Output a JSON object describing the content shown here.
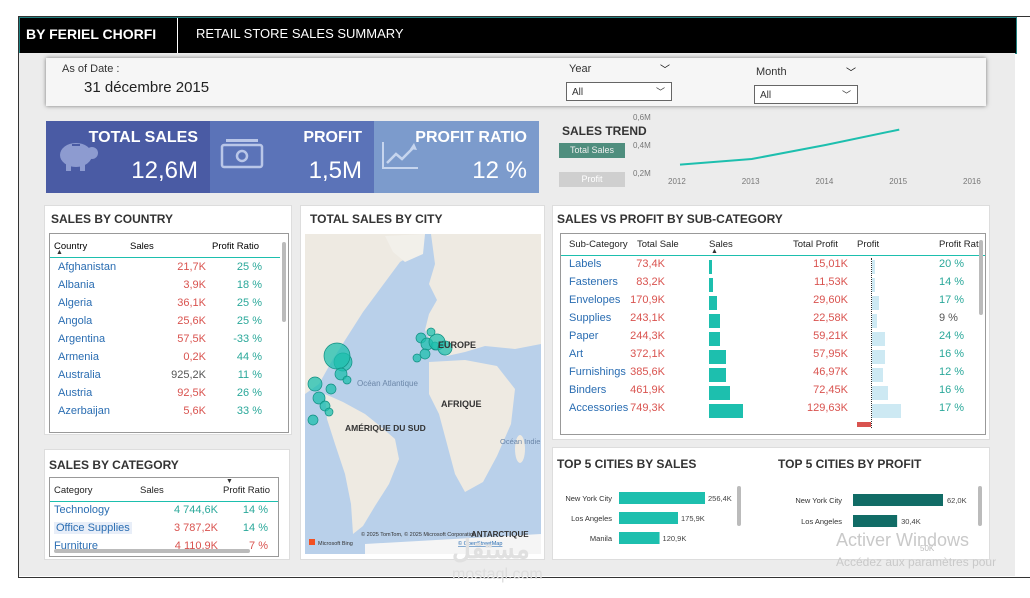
{
  "header": {
    "author": "BY FERIEL CHORFI",
    "subtitle": "RETAIL STORE SALES SUMMARY"
  },
  "filters": {
    "as_of_label": "As of Date :",
    "as_of_value": "31 décembre 2015",
    "year_label": "Year",
    "year_value": "All",
    "month_label": "Month",
    "month_value": "All"
  },
  "kpis": {
    "total_sales_label": "TOTAL SALES",
    "total_sales_value": "12,6M",
    "profit_label": "PROFIT",
    "profit_value": "1,5M",
    "profit_ratio_label": "PROFIT RATIO",
    "profit_ratio_value": "12 %"
  },
  "trend": {
    "title": "SALES TREND",
    "btn_sales": "Total Sales",
    "btn_profit": "Profit",
    "y_ticks": [
      "0,6M",
      "0,4M",
      "0,2M"
    ],
    "x_ticks": [
      "2012",
      "2013",
      "2014",
      "2015",
      "2016"
    ],
    "chart_data": {
      "type": "line",
      "x": [
        2012,
        2013,
        2014,
        2015
      ],
      "values": [
        0.26,
        0.3,
        0.4,
        0.51
      ],
      "ylim": [
        0.2,
        0.6
      ],
      "xlim": [
        2012,
        2016
      ]
    }
  },
  "country": {
    "title": "SALES BY COUNTRY",
    "headers": [
      "Country",
      "Sales",
      "Profit Ratio"
    ],
    "rows": [
      {
        "name": "Afghanistan",
        "sales": "21,7K",
        "ratio": "25 %"
      },
      {
        "name": "Albania",
        "sales": "3,9K",
        "ratio": "18 %"
      },
      {
        "name": "Algeria",
        "sales": "36,1K",
        "ratio": "25 %"
      },
      {
        "name": "Angola",
        "sales": "25,6K",
        "ratio": "25 %"
      },
      {
        "name": "Argentina",
        "sales": "57,5K",
        "ratio": "-33 %"
      },
      {
        "name": "Armenia",
        "sales": "0,2K",
        "ratio": "44 %"
      },
      {
        "name": "Australia",
        "sales": "925,2K",
        "ratio": "11 %"
      },
      {
        "name": "Austria",
        "sales": "92,5K",
        "ratio": "26 %"
      },
      {
        "name": "Azerbaijan",
        "sales": "5,6K",
        "ratio": "33 %"
      }
    ]
  },
  "map": {
    "title": "TOTAL SALES BY CITY",
    "labels": {
      "europe": "EUROPE",
      "africa": "AFRIQUE",
      "south_america": "AMÉRIQUE DU SUD",
      "atlantic": "Océan Atlantique",
      "indian": "Océan Indien",
      "antarctic": "ANTARCTIQUE"
    },
    "credit": "© 2025 TomTom, © 2025 Microsoft Corporation",
    "credit_link": "© OpenStreetMap",
    "bing": "Microsoft Bing"
  },
  "subcat": {
    "title": "SALES VS PROFIT BY SUB-CATEGORY",
    "headers": [
      "Sub-Category",
      "Total Sale",
      "Sales",
      "Total Profit",
      "Profit",
      "Profit Rat"
    ],
    "rows": [
      {
        "name": "Labels",
        "sale": "73,4K",
        "profit": "15,01K",
        "ratio": "20 %",
        "sale_num": 73.4,
        "profit_num": 15.01
      },
      {
        "name": "Fasteners",
        "sale": "83,2K",
        "profit": "11,53K",
        "ratio": "14 %",
        "sale_num": 83.2,
        "profit_num": 11.53
      },
      {
        "name": "Envelopes",
        "sale": "170,9K",
        "profit": "29,60K",
        "ratio": "17 %",
        "sale_num": 170.9,
        "profit_num": 29.6
      },
      {
        "name": "Supplies",
        "sale": "243,1K",
        "profit": "22,58K",
        "ratio": "9 %",
        "sale_num": 243.1,
        "profit_num": 22.58
      },
      {
        "name": "Paper",
        "sale": "244,3K",
        "profit": "59,21K",
        "ratio": "24 %",
        "sale_num": 244.3,
        "profit_num": 59.21
      },
      {
        "name": "Art",
        "sale": "372,1K",
        "profit": "57,95K",
        "ratio": "16 %",
        "sale_num": 372.1,
        "profit_num": 57.95
      },
      {
        "name": "Furnishings",
        "sale": "385,6K",
        "profit": "46,97K",
        "ratio": "12 %",
        "sale_num": 385.6,
        "profit_num": 46.97
      },
      {
        "name": "Binders",
        "sale": "461,9K",
        "profit": "72,45K",
        "ratio": "16 %",
        "sale_num": 461.9,
        "profit_num": 72.45
      },
      {
        "name": "Accessories",
        "sale": "749,3K",
        "profit": "129,63K",
        "ratio": "17 %",
        "sale_num": 749.3,
        "profit_num": 129.63
      }
    ]
  },
  "category": {
    "title": "SALES BY CATEGORY",
    "headers": [
      "Category",
      "Sales",
      "Profit Ratio"
    ],
    "rows": [
      {
        "name": "Technology",
        "sales": "4 744,6K",
        "ratio": "14 %"
      },
      {
        "name": "Office Supplies",
        "sales": "3 787,2K",
        "ratio": "14 %"
      },
      {
        "name": "Furniture",
        "sales": "4 110,9K",
        "ratio": "7 %"
      }
    ]
  },
  "top_sales": {
    "title": "TOP 5 CITIES BY SALES",
    "chart_data": {
      "type": "bar",
      "categories": [
        "New York City",
        "Los Angeles",
        "Manila"
      ],
      "values": [
        256.4,
        175.9,
        120.9
      ],
      "labels": [
        "256,4K",
        "175,9K",
        "120,9K"
      ],
      "max": 256.4
    }
  },
  "top_profit": {
    "title": "TOP 5 CITIES BY PROFIT",
    "axis_tick": "50K",
    "chart_data": {
      "type": "bar",
      "categories": [
        "New York City",
        "Los Angeles"
      ],
      "values": [
        62.0,
        30.4
      ],
      "labels": [
        "62,0K",
        "30,4K"
      ],
      "max": 62.0
    }
  },
  "watermark": {
    "line1": "Activer Windows",
    "line2": "Accédez aux paramètres pour",
    "site1": "مستقل",
    "site2": "mostaql.com"
  },
  "colors": {
    "teal": "#1dbfae",
    "dark_teal": "#116c66",
    "navy": "#4a5ba4",
    "mid_blue": "#5b73b8",
    "light_blue": "#7c9bcc"
  }
}
